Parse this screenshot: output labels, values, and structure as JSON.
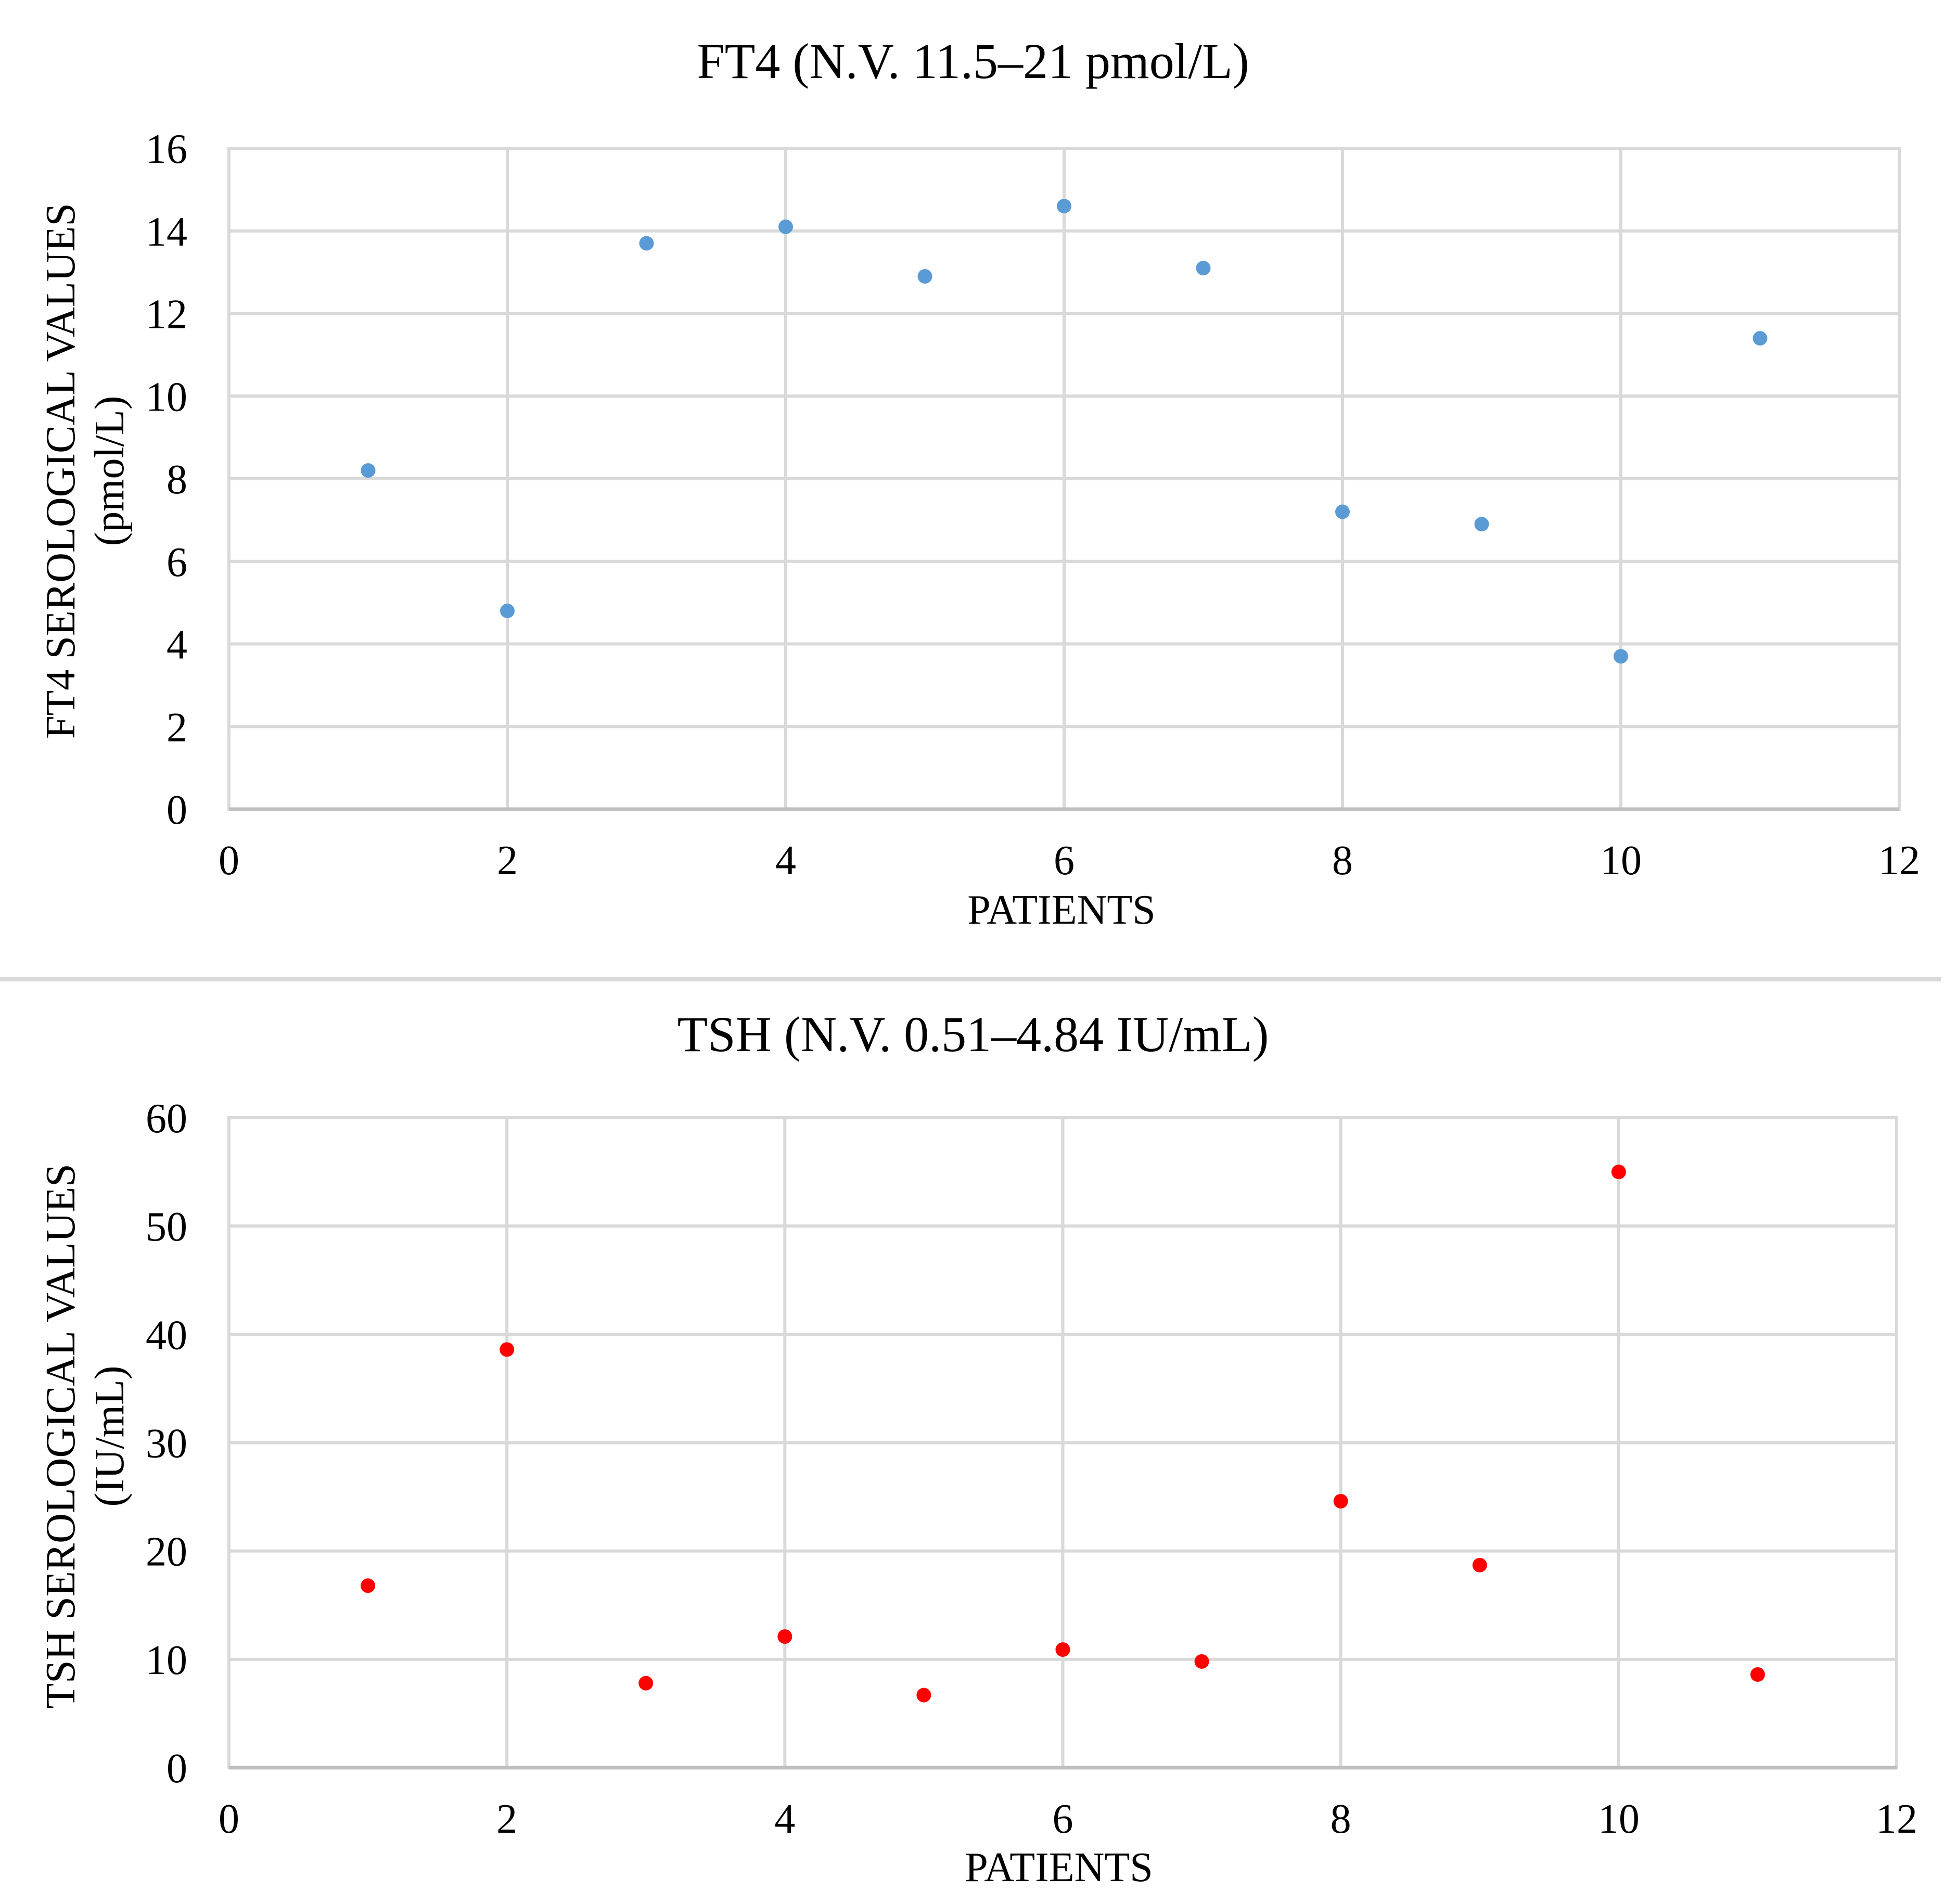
{
  "chart_data": [
    {
      "type": "scatter",
      "title": "FT4  (N.V. 11.5–21 pmol/L)",
      "xlabel": "PATIENTS",
      "ylabel": "FT4  SEROLOGICAL VALUES",
      "ylabel_unit": "(pmol/L)",
      "xlim": [
        0,
        12
      ],
      "ylim": [
        0,
        16
      ],
      "xticks": [
        0,
        2,
        4,
        6,
        8,
        10,
        12
      ],
      "yticks": [
        0,
        2,
        4,
        6,
        8,
        10,
        12,
        14,
        16
      ],
      "grid": true,
      "marker_color": "#5b9bd5",
      "series": [
        {
          "name": "FT4",
          "x": [
            1,
            2,
            3,
            4,
            5,
            6,
            7,
            8,
            9,
            10,
            11
          ],
          "y": [
            8.2,
            4.8,
            13.7,
            14.1,
            12.9,
            14.6,
            13.1,
            7.2,
            6.9,
            3.7,
            11.4
          ]
        }
      ]
    },
    {
      "type": "scatter",
      "title": "TSH  (N.V. 0.51–4.84 IU/mL)",
      "xlabel": "PATIENTS",
      "ylabel": "TSH  SEROLOGICAL VALUES",
      "ylabel_unit": "(IU/mL)",
      "xlim": [
        0,
        12
      ],
      "ylim": [
        0,
        60
      ],
      "xticks": [
        0,
        2,
        4,
        6,
        8,
        10,
        12
      ],
      "yticks": [
        0,
        10,
        20,
        30,
        40,
        50,
        60
      ],
      "grid": true,
      "marker_color": "#ff0000",
      "series": [
        {
          "name": "TSH",
          "x": [
            1,
            2,
            3,
            4,
            5,
            6,
            7,
            8,
            9,
            10,
            11
          ],
          "y": [
            16.8,
            38.6,
            7.8,
            12.1,
            6.7,
            10.9,
            9.8,
            24.6,
            18.7,
            55.0,
            8.6
          ]
        }
      ]
    }
  ]
}
